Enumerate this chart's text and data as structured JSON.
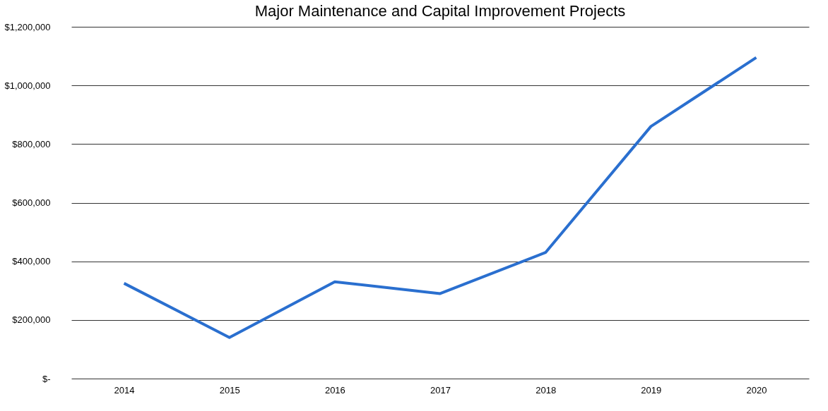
{
  "chart_data": {
    "type": "line",
    "title": "Major Maintenance and Capital Improvement Projects",
    "categories": [
      "2014",
      "2015",
      "2016",
      "2017",
      "2018",
      "2019",
      "2020"
    ],
    "series": [
      {
        "color": "#2a6fcf",
        "values": [
          325000,
          140000,
          330000,
          290000,
          430000,
          860000,
          1095000
        ]
      }
    ],
    "ylim": [
      0,
      1200000
    ],
    "yticks": [
      {
        "value": 0,
        "label": "$-"
      },
      {
        "value": 200000,
        "label": "$200,000"
      },
      {
        "value": 400000,
        "label": "$400,000"
      },
      {
        "value": 600000,
        "label": "$600,000"
      },
      {
        "value": 800000,
        "label": "$800,000"
      },
      {
        "value": 1000000,
        "label": "$1,000,000"
      },
      {
        "value": 1200000,
        "label": "$1,200,000"
      }
    ],
    "grid": "y",
    "legend": false,
    "marker": "none",
    "line_style": "solid"
  }
}
